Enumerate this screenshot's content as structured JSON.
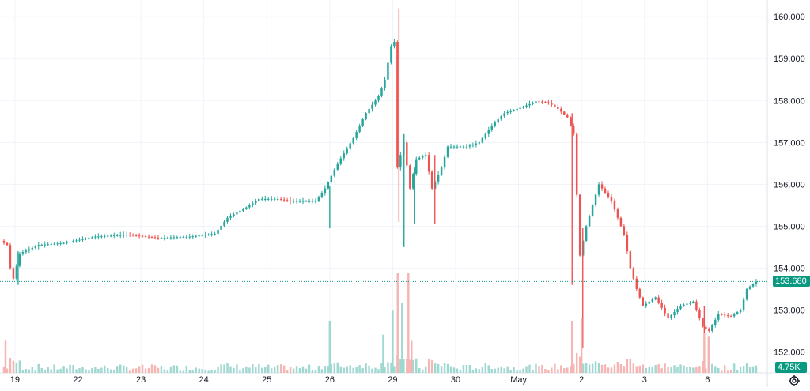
{
  "chart_data": {
    "type": "candlestick",
    "title": "",
    "ylim": [
      151.5,
      160.4
    ],
    "y_ticks": [
      {
        "value": 152,
        "label": "152.000"
      },
      {
        "value": 153,
        "label": "153.000"
      },
      {
        "value": 154,
        "label": "154.000"
      },
      {
        "value": 155,
        "label": "155.000"
      },
      {
        "value": 156,
        "label": "156.000"
      },
      {
        "value": 157,
        "label": "157.000"
      },
      {
        "value": 158,
        "label": "158.000"
      },
      {
        "value": 159,
        "label": "159.000"
      },
      {
        "value": 160,
        "label": "160.000"
      }
    ],
    "x_range": [
      0,
      12
    ],
    "x_ticks": [
      {
        "pos": 0.2,
        "label": "19"
      },
      {
        "pos": 1.2,
        "label": "22"
      },
      {
        "pos": 2.2,
        "label": "23"
      },
      {
        "pos": 3.2,
        "label": "24"
      },
      {
        "pos": 4.2,
        "label": "25"
      },
      {
        "pos": 5.2,
        "label": "26"
      },
      {
        "pos": 6.2,
        "label": "29"
      },
      {
        "pos": 7.2,
        "label": "30"
      },
      {
        "pos": 8.2,
        "label": "May"
      },
      {
        "pos": 9.2,
        "label": "2"
      },
      {
        "pos": 10.2,
        "label": "3"
      },
      {
        "pos": 11.2,
        "label": "6"
      }
    ],
    "last_price": 153.68,
    "last_price_label": "153.680",
    "volume_label": "4.75K",
    "up_color": "#26a69a",
    "down_color": "#ef5350",
    "grid": true,
    "path": [
      [
        0.0,
        154.65
      ],
      [
        0.1,
        154.55
      ],
      [
        0.15,
        154.0
      ],
      [
        0.2,
        153.75
      ],
      [
        0.3,
        154.35
      ],
      [
        0.6,
        154.55
      ],
      [
        1.0,
        154.6
      ],
      [
        1.5,
        154.75
      ],
      [
        2.0,
        154.8
      ],
      [
        2.5,
        154.72
      ],
      [
        3.0,
        154.75
      ],
      [
        3.4,
        154.82
      ],
      [
        3.6,
        155.2
      ],
      [
        3.9,
        155.45
      ],
      [
        4.1,
        155.65
      ],
      [
        4.4,
        155.65
      ],
      [
        4.6,
        155.6
      ],
      [
        5.0,
        155.6
      ],
      [
        5.15,
        155.9
      ],
      [
        5.35,
        156.5
      ],
      [
        5.6,
        157.1
      ],
      [
        5.8,
        157.7
      ],
      [
        6.0,
        158.1
      ],
      [
        6.1,
        158.5
      ],
      [
        6.2,
        159.3
      ],
      [
        6.25,
        159.4
      ],
      [
        6.3,
        156.4
      ],
      [
        6.4,
        157.0
      ],
      [
        6.5,
        155.9
      ],
      [
        6.6,
        156.6
      ],
      [
        6.75,
        156.7
      ],
      [
        6.85,
        155.9
      ],
      [
        7.0,
        156.4
      ],
      [
        7.1,
        156.9
      ],
      [
        7.4,
        156.9
      ],
      [
        7.6,
        157.0
      ],
      [
        7.8,
        157.4
      ],
      [
        8.0,
        157.7
      ],
      [
        8.3,
        157.85
      ],
      [
        8.5,
        157.98
      ],
      [
        8.7,
        157.95
      ],
      [
        8.85,
        157.8
      ],
      [
        9.0,
        157.6
      ],
      [
        9.1,
        157.2
      ],
      [
        9.2,
        154.3
      ],
      [
        9.3,
        155.0
      ],
      [
        9.5,
        156.0
      ],
      [
        9.7,
        155.6
      ],
      [
        9.9,
        154.8
      ],
      [
        10.0,
        154.0
      ],
      [
        10.1,
        153.5
      ],
      [
        10.2,
        153.1
      ],
      [
        10.4,
        153.3
      ],
      [
        10.6,
        152.8
      ],
      [
        10.8,
        153.1
      ],
      [
        11.0,
        153.2
      ],
      [
        11.15,
        152.6
      ],
      [
        11.25,
        152.5
      ],
      [
        11.4,
        152.9
      ],
      [
        11.6,
        152.85
      ],
      [
        11.75,
        153.0
      ],
      [
        11.85,
        153.5
      ],
      [
        12.0,
        153.68
      ]
    ],
    "spikes": [
      {
        "x": 5.2,
        "high": 155.95,
        "low": 154.95
      },
      {
        "x": 6.3,
        "high": 160.2,
        "low": 155.1
      },
      {
        "x": 6.38,
        "high": 157.2,
        "low": 154.5
      },
      {
        "x": 6.55,
        "high": 156.4,
        "low": 155.05
      },
      {
        "x": 6.87,
        "high": 156.7,
        "low": 155.05
      },
      {
        "x": 9.05,
        "high": 157.7,
        "low": 153.6
      },
      {
        "x": 9.22,
        "high": 154.95,
        "low": 152.1
      },
      {
        "x": 11.15,
        "high": 153.1,
        "low": 152.1
      },
      {
        "x": 0.25,
        "high": 154.4,
        "low": 153.6
      }
    ],
    "volume_spikes": [
      {
        "x": 5.2,
        "value": 0.52
      },
      {
        "x": 6.2,
        "value": 0.62
      },
      {
        "x": 6.28,
        "value": 1.0
      },
      {
        "x": 6.35,
        "value": 0.7
      },
      {
        "x": 6.45,
        "value": 1.0
      },
      {
        "x": 6.5,
        "value": 0.32
      },
      {
        "x": 9.05,
        "value": 0.52
      },
      {
        "x": 9.2,
        "value": 0.55
      },
      {
        "x": 11.15,
        "value": 0.4
      },
      {
        "x": 11.22,
        "value": 0.36
      },
      {
        "x": 6.05,
        "value": 0.38
      },
      {
        "x": 0.05,
        "value": 0.32
      }
    ]
  },
  "ui": {
    "settings_icon": "gear-icon"
  }
}
